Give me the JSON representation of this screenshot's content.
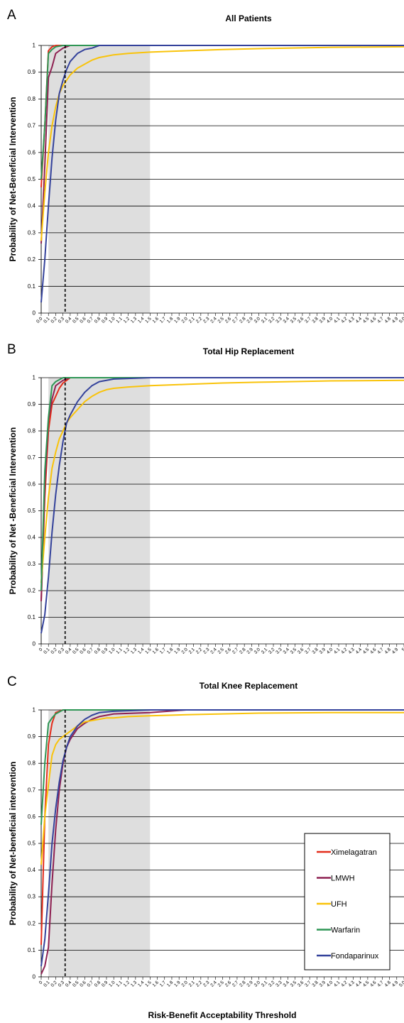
{
  "figure": {
    "xlabel": "Risk-Benefit Acceptability Threshold",
    "legend": [
      {
        "name": "Ximelagatran",
        "color": "#e32d1b"
      },
      {
        "name": "LMWH",
        "color": "#8e2152"
      },
      {
        "name": "UFH",
        "color": "#f9c30a"
      },
      {
        "name": "Warfarin",
        "color": "#2f9655"
      },
      {
        "name": "Fondaparinux",
        "color": "#34429b"
      }
    ],
    "colors": {
      "shade": "#dedede",
      "grid": "#000000"
    }
  },
  "chart_data": [
    {
      "panel": "A",
      "type": "line",
      "title": "All Patients",
      "ylabel": "Probability of Net-Beneficial Intervention",
      "x_ticks": [
        "0.0",
        "0.1",
        "0.2",
        "0.3",
        "0.4",
        "0.5",
        "0.6",
        "0.7",
        "0.8",
        "0.9",
        "1.0",
        "1.1",
        "1.2",
        "1.3",
        "1.4",
        "1.5",
        "1.6",
        "1.7",
        "1.8",
        "1.9",
        "2.0",
        "2.1",
        "2.2",
        "2.3",
        "2.4",
        "2.5",
        "2.6",
        "2.7",
        "2.8",
        "2.9",
        "3.0",
        "3.1",
        "3.2",
        "3.3",
        "3.4",
        "3.5",
        "3.6",
        "3.7",
        "3.8",
        "3.9",
        "4.0",
        "4.1",
        "4.2",
        "4.3",
        "4.4",
        "4.5",
        "4.6",
        "4.7",
        "4.8",
        "4.9",
        "5.0"
      ],
      "y_ticks": [
        "0",
        "0.1",
        "0.2",
        "0.3",
        "0.4",
        "0.5",
        "0.6",
        "0.7",
        "0.8",
        "0.9",
        "1"
      ],
      "ylim": [
        0,
        1
      ],
      "xlim": [
        0,
        5
      ],
      "shaded_region": [
        0.1,
        1.5
      ],
      "reference_line_x": 0.33,
      "grid": "horizontal",
      "series": [
        {
          "name": "Ximelagatran",
          "x": [
            0,
            0.05,
            0.1,
            0.15,
            0.2,
            0.3,
            0.5,
            1,
            5
          ],
          "y": [
            0.47,
            0.7,
            0.98,
            0.995,
            1,
            1,
            1,
            1,
            1
          ]
        },
        {
          "name": "LMWH",
          "x": [
            0,
            0.05,
            0.1,
            0.15,
            0.2,
            0.25,
            0.3,
            0.4,
            0.5,
            1,
            5
          ],
          "y": [
            0.26,
            0.55,
            0.88,
            0.92,
            0.97,
            0.98,
            0.99,
            1,
            1,
            1,
            1
          ]
        },
        {
          "name": "UFH",
          "x": [
            0,
            0.05,
            0.1,
            0.15,
            0.2,
            0.25,
            0.3,
            0.35,
            0.4,
            0.5,
            0.6,
            0.7,
            0.8,
            0.9,
            1,
            1.2,
            1.5,
            2,
            2.5,
            3,
            4,
            5
          ],
          "y": [
            0.27,
            0.45,
            0.6,
            0.7,
            0.77,
            0.82,
            0.85,
            0.87,
            0.89,
            0.915,
            0.93,
            0.945,
            0.955,
            0.96,
            0.965,
            0.97,
            0.975,
            0.98,
            0.985,
            0.988,
            0.993,
            0.995
          ]
        },
        {
          "name": "Warfarin",
          "x": [
            0,
            0.05,
            0.1,
            0.15,
            0.2,
            0.3,
            0.4,
            0.5,
            1,
            5
          ],
          "y": [
            0.5,
            0.7,
            0.97,
            0.985,
            0.995,
            1,
            1,
            1,
            1,
            1
          ]
        },
        {
          "name": "Fondaparinux",
          "x": [
            0,
            0.05,
            0.1,
            0.15,
            0.2,
            0.25,
            0.3,
            0.35,
            0.4,
            0.5,
            0.6,
            0.7,
            0.8,
            1,
            1.5,
            5
          ],
          "y": [
            0.04,
            0.2,
            0.4,
            0.58,
            0.72,
            0.82,
            0.87,
            0.91,
            0.94,
            0.97,
            0.985,
            0.99,
            1,
            1,
            1,
            1
          ]
        }
      ]
    },
    {
      "panel": "B",
      "type": "line",
      "title": "Total Hip Replacement",
      "ylabel": "Probability of Net -Beneficial Intervention",
      "x_ticks": [
        "0",
        "0.1",
        "0.2",
        "0.3",
        "0.4",
        "0.5",
        "0.6",
        "0.7",
        "0.8",
        "0.9",
        "1.0",
        "1.1",
        "1.2",
        "1.3",
        "1.4",
        "1.5",
        "1.6",
        "1.7",
        "1.8",
        "1.9",
        "2.0",
        "2.1",
        "2.2",
        "2.3",
        "2.4",
        "2.5",
        "2.6",
        "2.7",
        "2.8",
        "2.9",
        "3.0",
        "3.1",
        "3.2",
        "3.3",
        "3.4",
        "3.5",
        "3.6",
        "3.7",
        "3.8",
        "3.9",
        "4.0",
        "4.1",
        "4.2",
        "4.3",
        "4.4",
        "4.5",
        "4.6",
        "4.7",
        "4.8",
        "4.9",
        "5"
      ],
      "y_ticks": [
        "0",
        "0.1",
        "0.2",
        "0.3",
        "0.4",
        "0.5",
        "0.6",
        "0.7",
        "0.8",
        "0.9",
        "1"
      ],
      "ylim": [
        0,
        1
      ],
      "xlim": [
        0,
        5
      ],
      "shaded_region": [
        0.1,
        1.5
      ],
      "reference_line_x": 0.33,
      "grid": "horizontal",
      "series": [
        {
          "name": "Ximelagatran",
          "x": [
            0,
            0.05,
            0.1,
            0.15,
            0.2,
            0.25,
            0.3,
            0.35,
            0.4,
            0.5,
            1,
            5
          ],
          "y": [
            0.16,
            0.55,
            0.8,
            0.9,
            0.93,
            0.96,
            0.98,
            0.99,
            1,
            1,
            1,
            1
          ]
        },
        {
          "name": "LMWH",
          "x": [
            0,
            0.05,
            0.1,
            0.15,
            0.2,
            0.25,
            0.3,
            0.4,
            0.5,
            1,
            5
          ],
          "y": [
            0.16,
            0.6,
            0.84,
            0.92,
            0.97,
            0.98,
            0.99,
            1,
            1,
            1,
            1
          ]
        },
        {
          "name": "UFH",
          "x": [
            0,
            0.05,
            0.1,
            0.15,
            0.2,
            0.25,
            0.3,
            0.35,
            0.4,
            0.5,
            0.6,
            0.7,
            0.8,
            0.9,
            1,
            1.2,
            1.5,
            2,
            2.5,
            3,
            4,
            5
          ],
          "y": [
            0.23,
            0.4,
            0.55,
            0.66,
            0.72,
            0.77,
            0.8,
            0.83,
            0.85,
            0.88,
            0.91,
            0.93,
            0.945,
            0.955,
            0.96,
            0.965,
            0.97,
            0.975,
            0.98,
            0.983,
            0.988,
            0.99
          ]
        },
        {
          "name": "Warfarin",
          "x": [
            0,
            0.05,
            0.1,
            0.15,
            0.2,
            0.3,
            0.4,
            0.5,
            1,
            5
          ],
          "y": [
            0.2,
            0.65,
            0.85,
            0.97,
            0.985,
            1,
            1,
            1,
            1,
            1
          ]
        },
        {
          "name": "Fondaparinux",
          "x": [
            0,
            0.05,
            0.1,
            0.15,
            0.2,
            0.25,
            0.3,
            0.35,
            0.4,
            0.5,
            0.6,
            0.7,
            0.8,
            1,
            1.5,
            5
          ],
          "y": [
            0.04,
            0.11,
            0.25,
            0.42,
            0.56,
            0.67,
            0.76,
            0.83,
            0.86,
            0.91,
            0.945,
            0.97,
            0.985,
            0.995,
            1,
            1
          ]
        }
      ]
    },
    {
      "panel": "C",
      "type": "line",
      "title": "Total Knee Replacement",
      "ylabel": "Probability of Net-beneficial intervention",
      "x_ticks": [
        "0",
        "0.1",
        "0.2",
        "0.3",
        "0.4",
        "0.5",
        "0.6",
        "0.7",
        "0.8",
        "0.9",
        "1.0",
        "1.1",
        "1.2",
        "1.3",
        "1.4",
        "1.5",
        "1.6",
        "1.7",
        "1.8",
        "1.9",
        "2.0",
        "2.1",
        "2.2",
        "2.3",
        "2.4",
        "2.5",
        "2.6",
        "2.7",
        "2.8",
        "2.9",
        "3.0",
        "3.1",
        "3.2",
        "3.3",
        "3.4",
        "3.5",
        "3.6",
        "3.7",
        "3.8",
        "3.9",
        "4.0",
        "4.1",
        "4.2",
        "4.3",
        "4.4",
        "4.5",
        "4.6",
        "4.7",
        "4.8",
        "4.9",
        "5.0"
      ],
      "y_ticks": [
        "0",
        "0.1",
        "0.2",
        "0.3",
        "0.4",
        "0.5",
        "0.6",
        "0.7",
        "0.8",
        "0.9",
        "1"
      ],
      "ylim": [
        0,
        1
      ],
      "xlim": [
        0,
        5
      ],
      "shaded_region": [
        0.1,
        1.5
      ],
      "reference_line_x": 0.33,
      "grid": "horizontal",
      "legend_position": "bottom-right",
      "series": [
        {
          "name": "Ximelagatran",
          "x": [
            0,
            0.05,
            0.1,
            0.15,
            0.2,
            0.25,
            0.3,
            0.4,
            0.5,
            1,
            5
          ],
          "y": [
            0.12,
            0.6,
            0.87,
            0.95,
            0.99,
            0.995,
            1,
            1,
            1,
            1,
            1
          ]
        },
        {
          "name": "LMWH",
          "x": [
            0,
            0.05,
            0.1,
            0.15,
            0.2,
            0.25,
            0.3,
            0.35,
            0.4,
            0.5,
            0.6,
            0.7,
            0.8,
            1,
            1.5,
            2,
            5
          ],
          "y": [
            0.01,
            0.04,
            0.11,
            0.35,
            0.55,
            0.7,
            0.8,
            0.86,
            0.89,
            0.93,
            0.95,
            0.965,
            0.975,
            0.985,
            0.99,
            1,
            1
          ]
        },
        {
          "name": "UFH",
          "x": [
            0,
            0.05,
            0.1,
            0.15,
            0.2,
            0.25,
            0.3,
            0.35,
            0.4,
            0.5,
            0.6,
            0.7,
            0.8,
            0.9,
            1,
            1.2,
            1.5,
            2,
            2.5,
            3,
            4,
            5
          ],
          "y": [
            0.42,
            0.6,
            0.72,
            0.83,
            0.87,
            0.89,
            0.9,
            0.91,
            0.92,
            0.94,
            0.955,
            0.96,
            0.965,
            0.97,
            0.97,
            0.975,
            0.978,
            0.982,
            0.985,
            0.988,
            0.99,
            0.99
          ]
        },
        {
          "name": "Warfarin",
          "x": [
            0,
            0.05,
            0.1,
            0.15,
            0.2,
            0.3,
            0.4,
            0.5,
            1,
            5
          ],
          "y": [
            0.57,
            0.8,
            0.95,
            0.97,
            0.985,
            1,
            1,
            1,
            1,
            1
          ]
        },
        {
          "name": "Fondaparinux",
          "x": [
            0,
            0.05,
            0.1,
            0.15,
            0.2,
            0.25,
            0.3,
            0.35,
            0.4,
            0.5,
            0.6,
            0.7,
            0.8,
            1,
            1.5,
            2,
            5
          ],
          "y": [
            0.04,
            0.14,
            0.31,
            0.5,
            0.63,
            0.73,
            0.81,
            0.86,
            0.9,
            0.94,
            0.965,
            0.98,
            0.99,
            0.995,
            1,
            1,
            1
          ]
        }
      ]
    }
  ]
}
